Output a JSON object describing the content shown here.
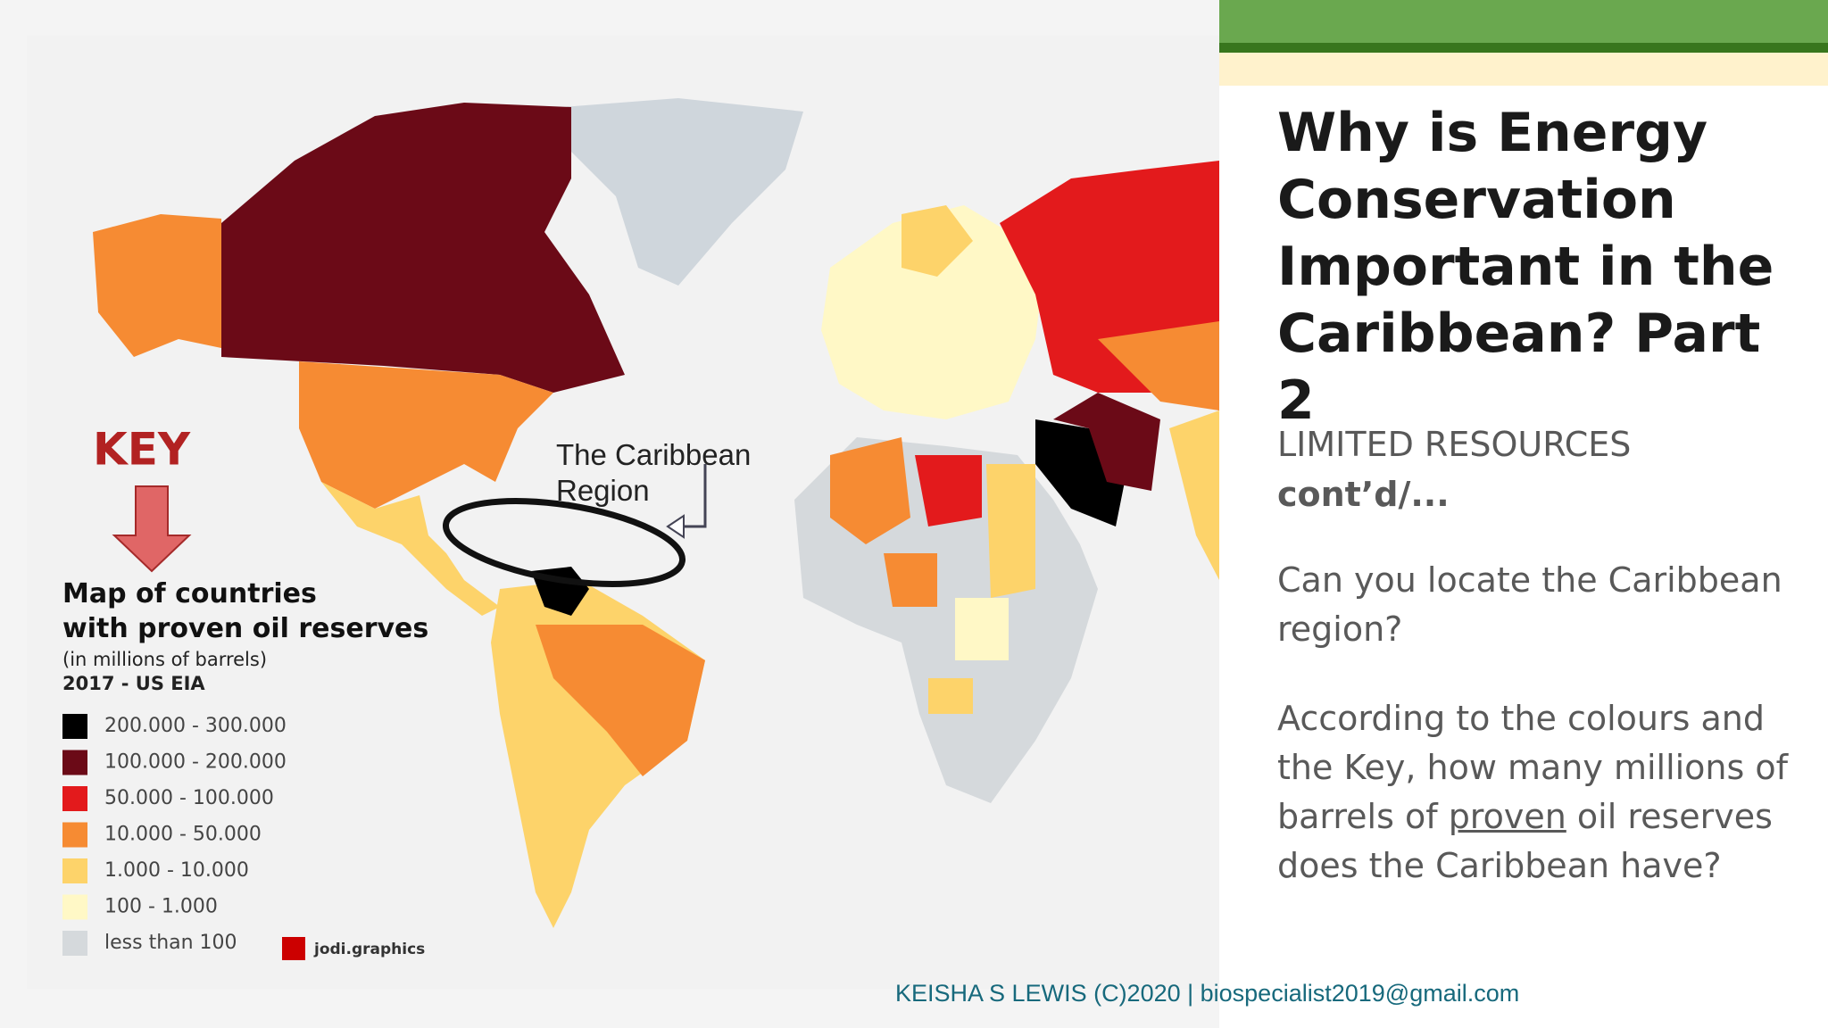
{
  "map": {
    "key": "KEY",
    "annotation": "The Caribbean Region",
    "legend": {
      "title": "Map of countries with proven oil reserves",
      "subtitle": "(in millions of barrels)",
      "source": "2017 - US EIA",
      "items": [
        {
          "label": "200.000 - 300.000",
          "color": "#000000"
        },
        {
          "label": "100.000 - 200.000",
          "color": "#6b0a17"
        },
        {
          "label": "50.000 - 100.000",
          "color": "#e31a1c"
        },
        {
          "label": "10.000 - 50.000",
          "color": "#f68b33"
        },
        {
          "label": "1.000 - 10.000",
          "color": "#fdd36a"
        },
        {
          "label": "100 - 1.000",
          "color": "#fff8c6"
        },
        {
          "label": "less than 100",
          "color": "#d5d9dc"
        }
      ]
    },
    "credit": "jodi.graphics"
  },
  "slide": {
    "title": "Why is Energy Conservation Important in the Caribbean? Part 2",
    "section": "LIMITED RESOURCES",
    "section_cont": "cont’d/...",
    "question1": "Can you locate the Caribbean region?",
    "question2_before": "According to the colours and the Key, how many millions of barrels of",
    "question2_underlined": "proven",
    "question2_after": "oil reserves does the Caribbean have?"
  },
  "footer": "KEISHA S LEWIS (C)2020 | biospecialist2019@gmail.com"
}
